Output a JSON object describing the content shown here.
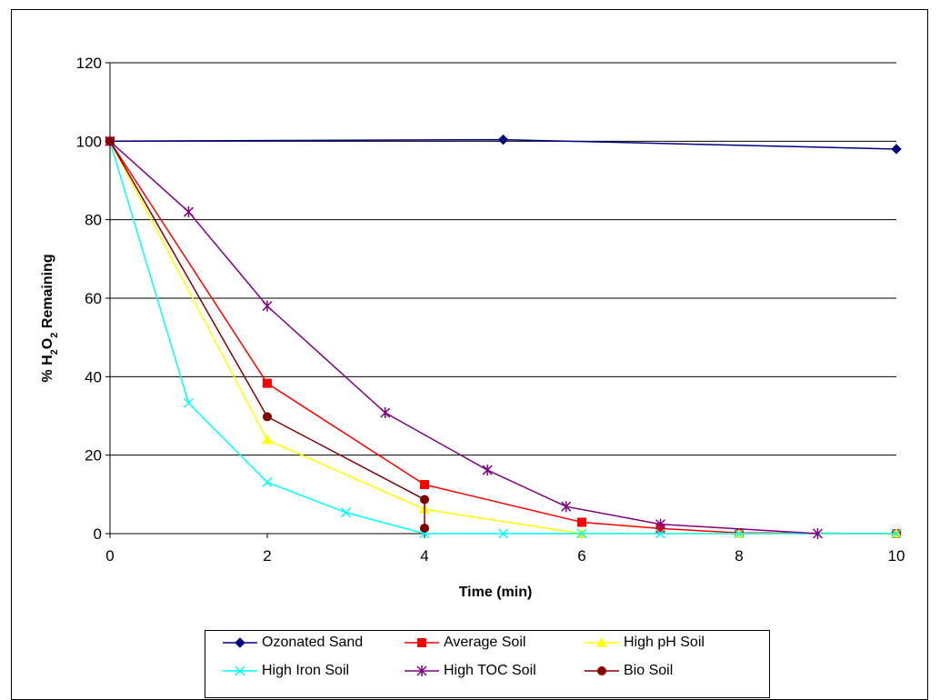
{
  "chart_data": {
    "type": "line",
    "xlabel": "Time (min)",
    "ylabel": "% H2O2 Remaining",
    "xlim": [
      0,
      10
    ],
    "ylim": [
      0,
      120
    ],
    "xticks": [
      "0",
      "2",
      "4",
      "6",
      "8",
      "10"
    ],
    "yticks": [
      "0",
      "20",
      "40",
      "60",
      "80",
      "100",
      "120"
    ],
    "grid": "horizontal",
    "legend_position": "bottom",
    "series": [
      {
        "name": "Ozonated Sand",
        "color": "#000080",
        "marker": "diamond",
        "points": [
          [
            0,
            100
          ],
          [
            5,
            100.4
          ],
          [
            10,
            98
          ]
        ]
      },
      {
        "name": "Average Soil",
        "color": "#ff0000",
        "marker": "square",
        "points": [
          [
            0,
            100
          ],
          [
            2,
            38.3
          ],
          [
            4,
            12.5
          ],
          [
            6,
            2.9
          ],
          [
            7,
            1.3
          ],
          [
            8,
            0.2
          ],
          [
            10,
            0
          ]
        ]
      },
      {
        "name": "High pH Soil",
        "color": "#ffff00",
        "marker": "triangle",
        "points": [
          [
            0,
            100
          ],
          [
            2,
            23.9
          ],
          [
            4,
            6.2
          ],
          [
            6,
            0
          ],
          [
            8,
            0
          ],
          [
            10,
            0
          ]
        ]
      },
      {
        "name": "High Iron Soil",
        "color": "#00ffff",
        "marker": "x",
        "points": [
          [
            0,
            100
          ],
          [
            1,
            33.3
          ],
          [
            2,
            13.1
          ],
          [
            3,
            5.4
          ],
          [
            4,
            0
          ],
          [
            5,
            0
          ],
          [
            6,
            0
          ],
          [
            7,
            0
          ],
          [
            8,
            0
          ],
          [
            10,
            0
          ]
        ]
      },
      {
        "name": "High TOC Soil",
        "color": "#800080",
        "marker": "star",
        "points": [
          [
            0,
            100
          ],
          [
            1,
            82
          ],
          [
            2,
            58
          ],
          [
            3.5,
            30.8
          ],
          [
            4.8,
            16.2
          ],
          [
            5.8,
            6.9
          ],
          [
            7,
            2.4
          ],
          [
            9,
            0
          ]
        ]
      },
      {
        "name": "Bio Soil",
        "color": "#800000",
        "marker": "circle",
        "points": [
          [
            0,
            100
          ],
          [
            2,
            29.8
          ],
          [
            4,
            8.7
          ],
          [
            4,
            1.4
          ]
        ]
      }
    ]
  }
}
